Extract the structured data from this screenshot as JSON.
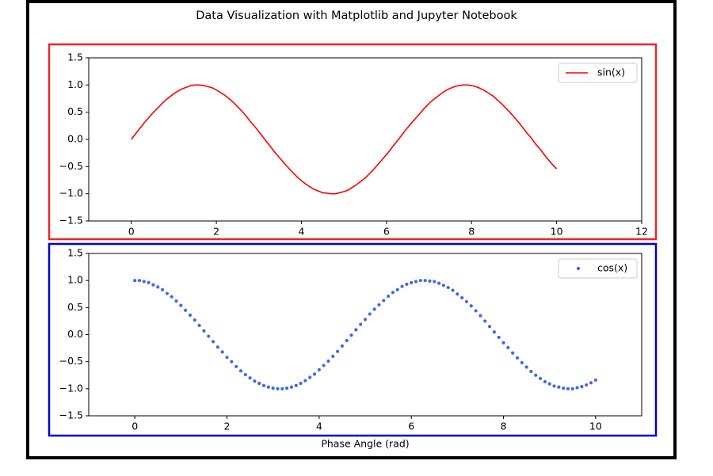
{
  "title": "Data Visualization with Matplotlib and Jupyter Notebook",
  "chart_data": [
    {
      "type": "line",
      "frame_color": "#e8262c",
      "legend": "upper right",
      "xlim": [
        -1,
        12
      ],
      "xticks": [
        0,
        2,
        4,
        6,
        8,
        10,
        12
      ],
      "ylim": [
        -1.5,
        1.5
      ],
      "yticks": [
        {
          "value": -1.5,
          "label": "−1.5"
        },
        {
          "value": -1.0,
          "label": "−1.0"
        },
        {
          "value": -0.5,
          "label": "−0.5"
        },
        {
          "value": 0.0,
          "label": "0.0"
        },
        {
          "value": 0.5,
          "label": "0.5"
        },
        {
          "value": 1.0,
          "label": "1.0"
        },
        {
          "value": 1.5,
          "label": "1.5"
        }
      ],
      "x": [
        0,
        0.1,
        0.2,
        0.3,
        0.4,
        0.5,
        0.6,
        0.7,
        0.8,
        0.9,
        1,
        1.1,
        1.2,
        1.3,
        1.4,
        1.5,
        1.6,
        1.7,
        1.8,
        1.9,
        2,
        2.1,
        2.2,
        2.3,
        2.4,
        2.5,
        2.6,
        2.7,
        2.8,
        2.9,
        3,
        3.1,
        3.2,
        3.3,
        3.4,
        3.5,
        3.6,
        3.7,
        3.8,
        3.9,
        4,
        4.1,
        4.2,
        4.3,
        4.4,
        4.5,
        4.6,
        4.7,
        4.8,
        4.9,
        5,
        5.1,
        5.2,
        5.3,
        5.4,
        5.5,
        5.6,
        5.7,
        5.8,
        5.9,
        6,
        6.1,
        6.2,
        6.3,
        6.4,
        6.5,
        6.6,
        6.7,
        6.8,
        6.9,
        7,
        7.1,
        7.2,
        7.3,
        7.4,
        7.5,
        7.6,
        7.7,
        7.8,
        7.9,
        8,
        8.1,
        8.2,
        8.3,
        8.4,
        8.5,
        8.6,
        8.7,
        8.8,
        8.9,
        9,
        9.1,
        9.2,
        9.3,
        9.4,
        9.5,
        9.6,
        9.7,
        9.8,
        9.9,
        10
      ],
      "series": [
        {
          "name": "sin(x)",
          "color": "#ff0000",
          "values": [
            0,
            0.1,
            0.2,
            0.3,
            0.39,
            0.48,
            0.56,
            0.64,
            0.72,
            0.78,
            0.84,
            0.89,
            0.93,
            0.96,
            0.99,
            1,
            1,
            0.99,
            0.97,
            0.95,
            0.91,
            0.86,
            0.81,
            0.75,
            0.68,
            0.6,
            0.52,
            0.43,
            0.33,
            0.24,
            0.14,
            0.04,
            -0.06,
            -0.16,
            -0.26,
            -0.35,
            -0.44,
            -0.53,
            -0.61,
            -0.69,
            -0.76,
            -0.82,
            -0.87,
            -0.92,
            -0.95,
            -0.98,
            -0.99,
            -1,
            -1,
            -0.98,
            -0.96,
            -0.93,
            -0.88,
            -0.83,
            -0.77,
            -0.71,
            -0.63,
            -0.55,
            -0.46,
            -0.37,
            -0.28,
            -0.18,
            -0.08,
            0.02,
            0.12,
            0.22,
            0.31,
            0.4,
            0.49,
            0.58,
            0.66,
            0.73,
            0.79,
            0.85,
            0.9,
            0.94,
            0.97,
            0.99,
            1,
            1,
            0.99,
            0.97,
            0.94,
            0.9,
            0.85,
            0.8,
            0.73,
            0.66,
            0.58,
            0.5,
            0.41,
            0.32,
            0.22,
            0.12,
            0.03,
            -0.08,
            -0.17,
            -0.27,
            -0.37,
            -0.46,
            -0.54
          ]
        }
      ]
    },
    {
      "type": "scatter",
      "frame_color": "#0000cc",
      "legend": "upper right",
      "xlabel": "Phase Angle (rad)",
      "xlim": [
        -1,
        11
      ],
      "xticks": [
        0,
        2,
        4,
        6,
        8,
        10
      ],
      "ylim": [
        -1.5,
        1.5
      ],
      "yticks": [
        {
          "value": -1.5,
          "label": "−1.5"
        },
        {
          "value": -1.0,
          "label": "−1.0"
        },
        {
          "value": -0.5,
          "label": "−0.5"
        },
        {
          "value": 0.0,
          "label": "0.0"
        },
        {
          "value": 0.5,
          "label": "0.5"
        },
        {
          "value": 1.0,
          "label": "1.0"
        },
        {
          "value": 1.5,
          "label": "1.5"
        }
      ],
      "x": [
        0,
        0.1,
        0.2,
        0.3,
        0.4,
        0.5,
        0.6,
        0.7,
        0.8,
        0.9,
        1,
        1.1,
        1.2,
        1.3,
        1.4,
        1.5,
        1.6,
        1.7,
        1.8,
        1.9,
        2,
        2.1,
        2.2,
        2.3,
        2.4,
        2.5,
        2.6,
        2.7,
        2.8,
        2.9,
        3,
        3.1,
        3.2,
        3.3,
        3.4,
        3.5,
        3.6,
        3.7,
        3.8,
        3.9,
        4,
        4.1,
        4.2,
        4.3,
        4.4,
        4.5,
        4.6,
        4.7,
        4.8,
        4.9,
        5,
        5.1,
        5.2,
        5.3,
        5.4,
        5.5,
        5.6,
        5.7,
        5.8,
        5.9,
        6,
        6.1,
        6.2,
        6.3,
        6.4,
        6.5,
        6.6,
        6.7,
        6.8,
        6.9,
        7,
        7.1,
        7.2,
        7.3,
        7.4,
        7.5,
        7.6,
        7.7,
        7.8,
        7.9,
        8,
        8.1,
        8.2,
        8.3,
        8.4,
        8.5,
        8.6,
        8.7,
        8.8,
        8.9,
        9,
        9.1,
        9.2,
        9.3,
        9.4,
        9.5,
        9.6,
        9.7,
        9.8,
        9.9,
        10
      ],
      "series": [
        {
          "name": "cos(x)",
          "color": "#4169e1",
          "values": [
            1,
            1,
            0.98,
            0.96,
            0.92,
            0.88,
            0.83,
            0.76,
            0.7,
            0.62,
            0.54,
            0.45,
            0.36,
            0.27,
            0.17,
            0.07,
            -0.03,
            -0.13,
            -0.23,
            -0.32,
            -0.42,
            -0.5,
            -0.59,
            -0.67,
            -0.74,
            -0.8,
            -0.86,
            -0.9,
            -0.94,
            -0.97,
            -0.99,
            -1,
            -1,
            -0.99,
            -0.97,
            -0.94,
            -0.9,
            -0.85,
            -0.79,
            -0.73,
            -0.65,
            -0.57,
            -0.49,
            -0.4,
            -0.31,
            -0.21,
            -0.11,
            -0.01,
            0.09,
            0.19,
            0.28,
            0.38,
            0.47,
            0.55,
            0.63,
            0.71,
            0.78,
            0.83,
            0.89,
            0.93,
            0.96,
            0.98,
            1,
            1,
            0.99,
            0.98,
            0.95,
            0.91,
            0.87,
            0.82,
            0.75,
            0.68,
            0.61,
            0.53,
            0.44,
            0.35,
            0.25,
            0.15,
            0.05,
            -0.05,
            -0.15,
            -0.24,
            -0.34,
            -0.43,
            -0.52,
            -0.6,
            -0.68,
            -0.75,
            -0.81,
            -0.87,
            -0.91,
            -0.95,
            -0.97,
            -0.99,
            -1,
            -1,
            -0.98,
            -0.96,
            -0.93,
            -0.89,
            -0.84
          ]
        }
      ]
    }
  ]
}
